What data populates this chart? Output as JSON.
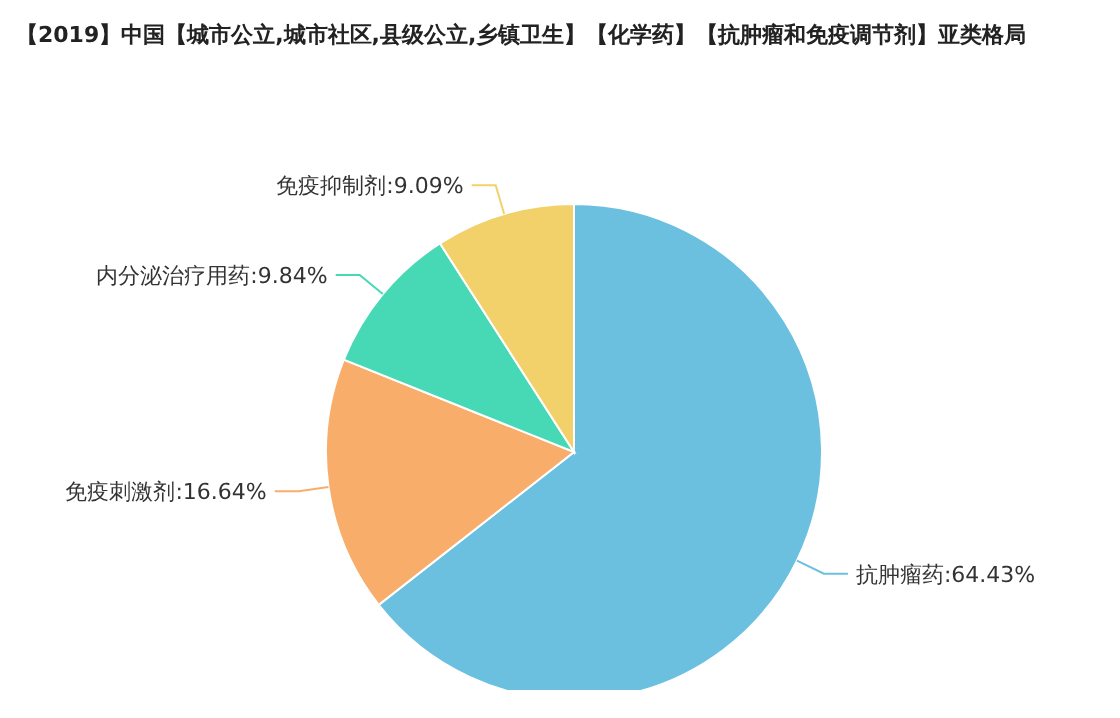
{
  "chart_data": {
    "type": "pie",
    "title": "【2019】中国【城市公立,城市社区,县级公立,乡镇卫生】【化学药】【抗肿瘤和免疫调节剂】亚类格局",
    "categories": [
      "抗肿瘤药",
      "免疫刺激剂",
      "内分泌治疗用药",
      "免疫抑制剂"
    ],
    "values": [
      64.43,
      16.64,
      9.84,
      9.09
    ],
    "colors": [
      "#6bc0e0",
      "#f8ad6a",
      "#47d9b6",
      "#f3d16a"
    ],
    "value_labels": [
      ":64.43%",
      ":16.64%",
      ":9.84%",
      ":9.09%"
    ]
  }
}
